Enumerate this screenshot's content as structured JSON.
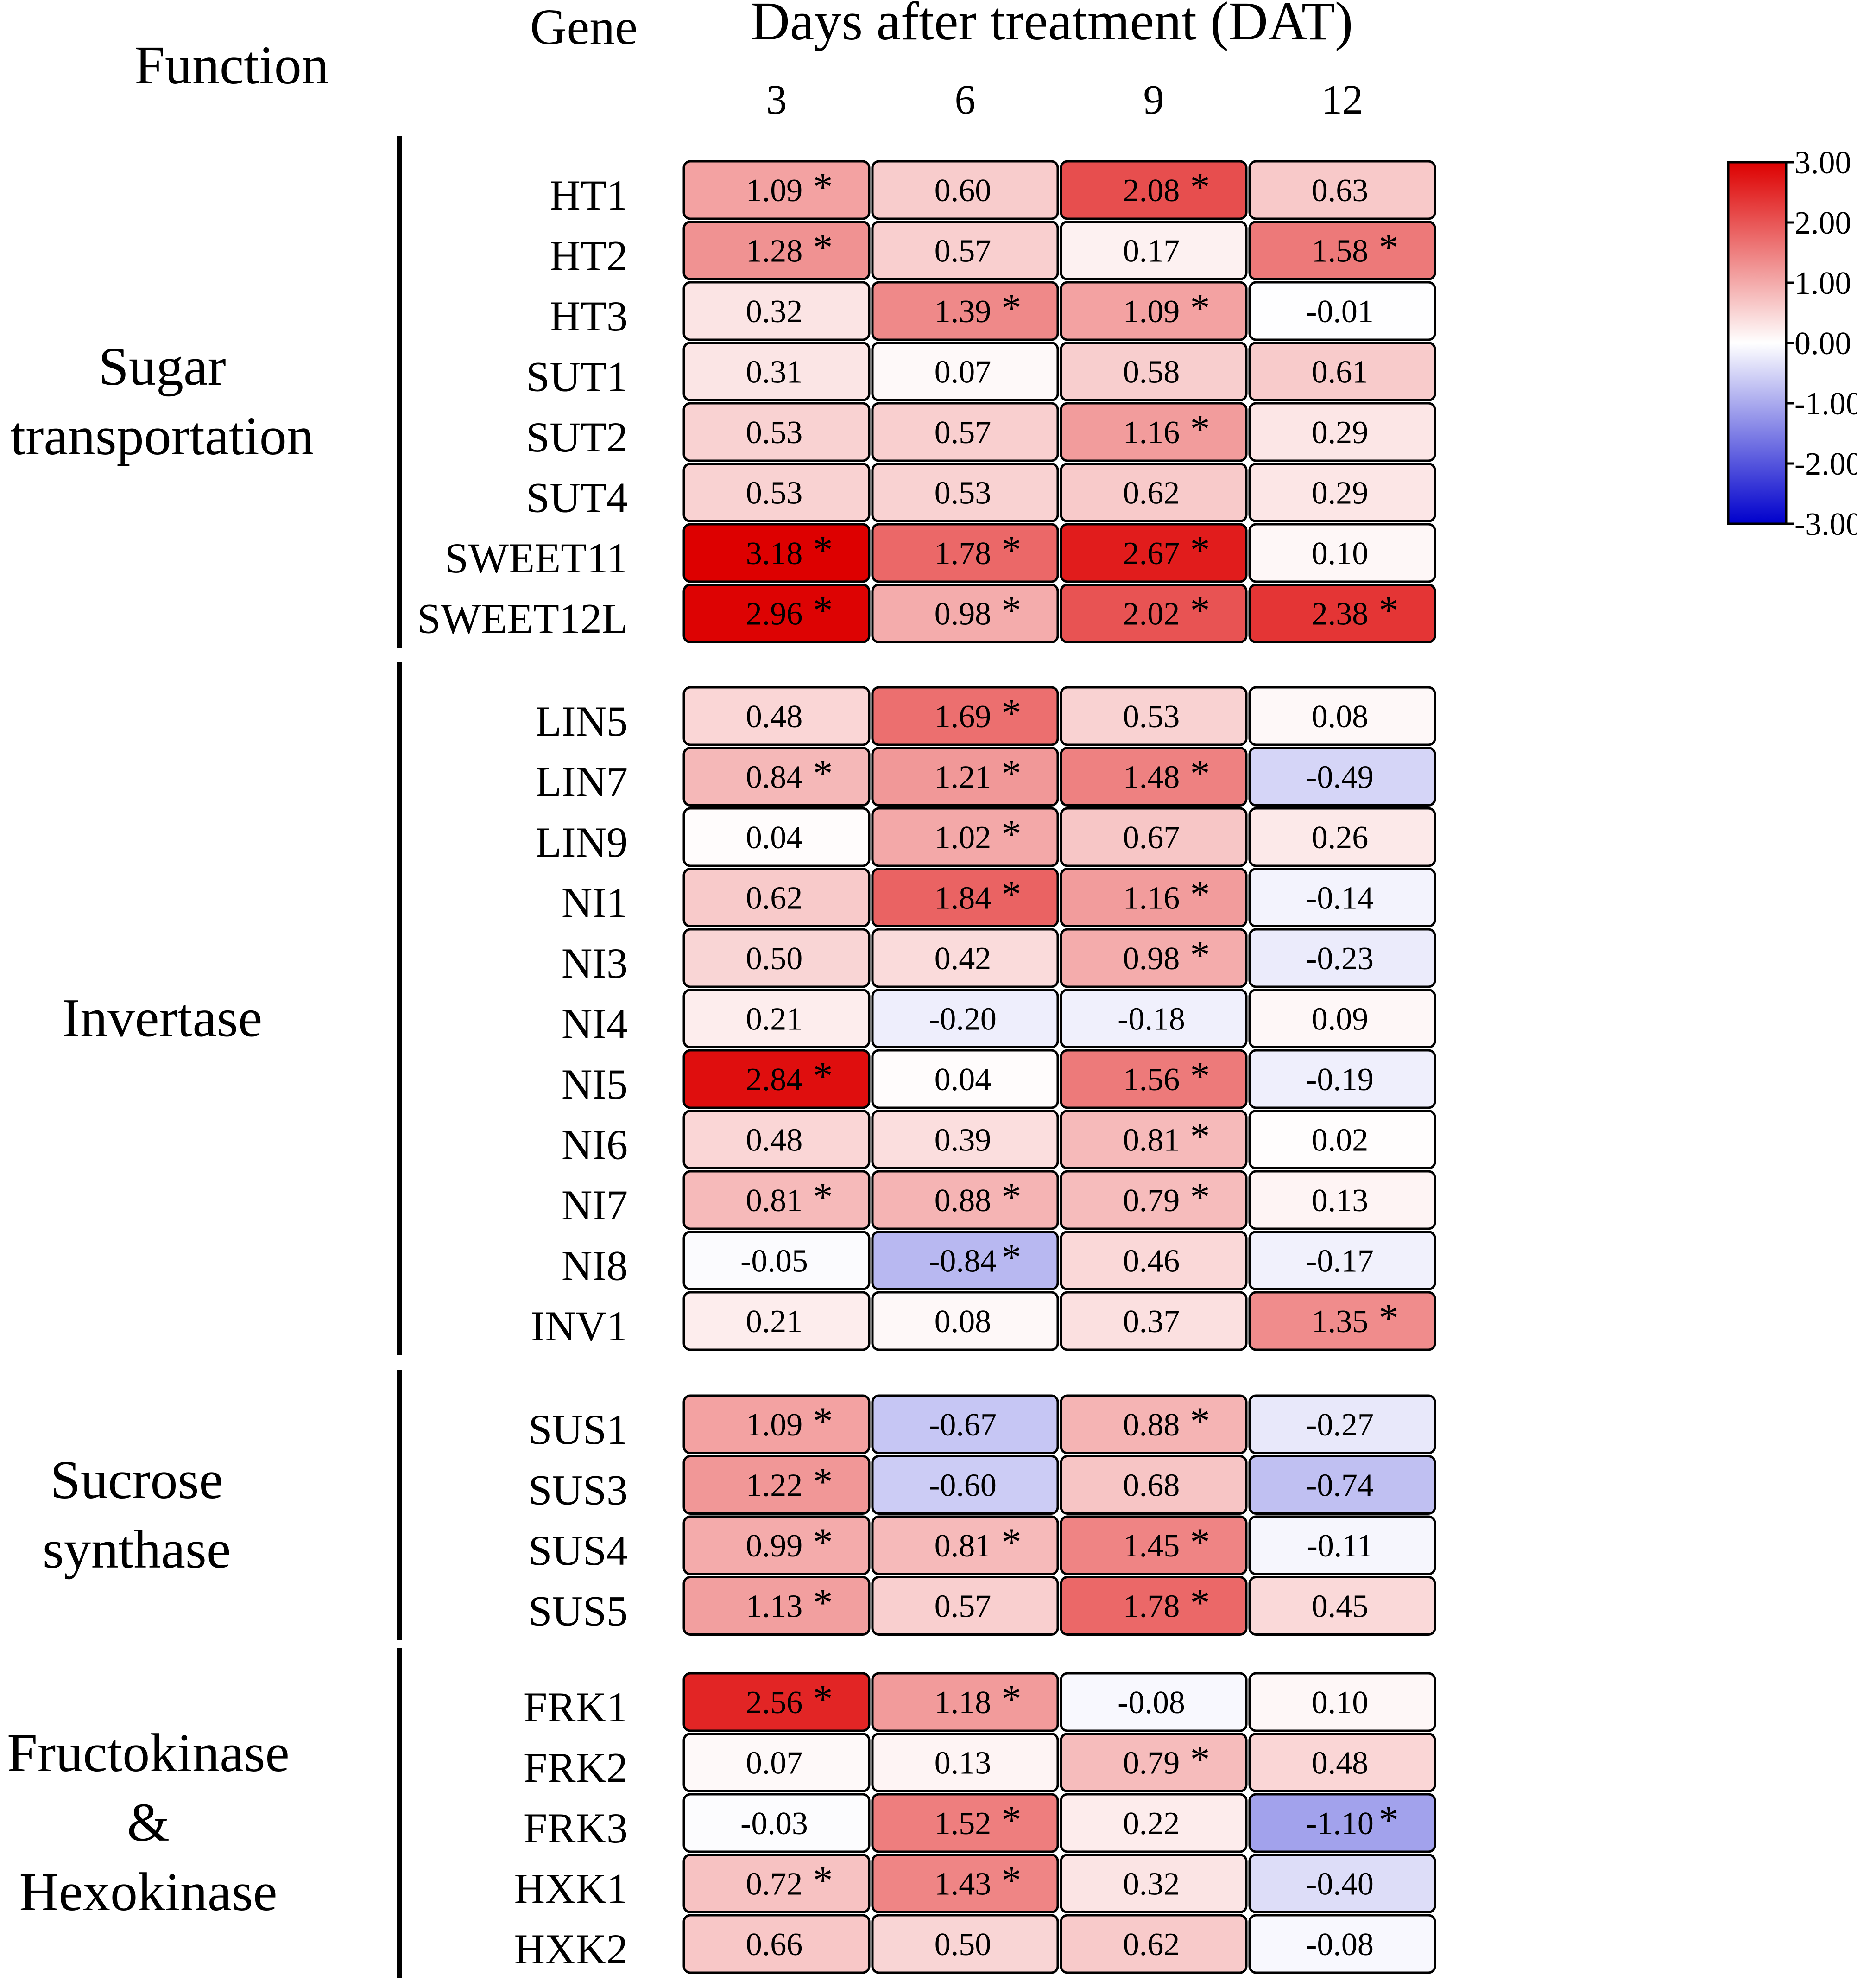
{
  "chart_data": {
    "type": "heatmap",
    "title": "Days after treatment (DAT)",
    "function_header": "Function",
    "gene_header": "Gene",
    "columns": [
      "3",
      "6",
      "9",
      "12"
    ],
    "significance_marker": "*",
    "color_scale": {
      "min": -3.0,
      "max": 3.0,
      "ticks": [
        "3.00",
        "2.00",
        "1.00",
        "0.00",
        "-1.00",
        "-2.00",
        "-3.00"
      ],
      "low_color": "#0000cc",
      "mid_color": "#ffffff",
      "high_color": "#dd0000"
    },
    "groups": [
      {
        "label_lines": [
          "Sugar",
          "transportation"
        ],
        "rows": [
          {
            "gene": "HT1",
            "values": [
              1.09,
              0.6,
              2.08,
              0.63
            ],
            "labels": [
              "1.09",
              "0.60",
              "2.08",
              "0.63"
            ],
            "sig": [
              true,
              false,
              true,
              false
            ]
          },
          {
            "gene": "HT2",
            "values": [
              1.28,
              0.57,
              0.17,
              1.58
            ],
            "labels": [
              "1.28",
              "0.57",
              "0.17",
              "1.58"
            ],
            "sig": [
              true,
              false,
              false,
              true
            ]
          },
          {
            "gene": "HT3",
            "values": [
              0.32,
              1.39,
              1.09,
              -0.01
            ],
            "labels": [
              "0.32",
              "1.39",
              "1.09",
              "-0.01"
            ],
            "sig": [
              false,
              true,
              true,
              false
            ]
          },
          {
            "gene": "SUT1",
            "values": [
              0.31,
              0.07,
              0.58,
              0.61
            ],
            "labels": [
              "0.31",
              "0.07",
              "0.58",
              "0.61"
            ],
            "sig": [
              false,
              false,
              false,
              false
            ]
          },
          {
            "gene": "SUT2",
            "values": [
              0.53,
              0.57,
              1.16,
              0.29
            ],
            "labels": [
              "0.53",
              "0.57",
              "1.16",
              "0.29"
            ],
            "sig": [
              false,
              false,
              true,
              false
            ]
          },
          {
            "gene": "SUT4",
            "values": [
              0.53,
              0.53,
              0.62,
              0.29
            ],
            "labels": [
              "0.53",
              "0.53",
              "0.62",
              "0.29"
            ],
            "sig": [
              false,
              false,
              false,
              false
            ]
          },
          {
            "gene": "SWEET11",
            "values": [
              3.18,
              1.78,
              2.67,
              0.1
            ],
            "labels": [
              "3.18",
              "1.78",
              "2.67",
              "0.10"
            ],
            "sig": [
              true,
              true,
              true,
              false
            ]
          },
          {
            "gene": "SWEET12L",
            "values": [
              2.96,
              0.98,
              2.02,
              2.38
            ],
            "labels": [
              "2.96",
              "0.98",
              "2.02",
              "2.38"
            ],
            "sig": [
              true,
              true,
              true,
              true
            ]
          }
        ]
      },
      {
        "label_lines": [
          "Invertase"
        ],
        "rows": [
          {
            "gene": "LIN5",
            "values": [
              0.48,
              1.69,
              0.53,
              0.08
            ],
            "labels": [
              "0.48",
              "1.69",
              "0.53",
              "0.08"
            ],
            "sig": [
              false,
              true,
              false,
              false
            ]
          },
          {
            "gene": "LIN7",
            "values": [
              0.84,
              1.21,
              1.48,
              -0.49
            ],
            "labels": [
              "0.84",
              "1.21",
              "1.48",
              "-0.49"
            ],
            "sig": [
              true,
              true,
              true,
              false
            ]
          },
          {
            "gene": "LIN9",
            "values": [
              0.04,
              1.02,
              0.67,
              0.26
            ],
            "labels": [
              "0.04",
              "1.02",
              "0.67",
              "0.26"
            ],
            "sig": [
              false,
              true,
              false,
              false
            ]
          },
          {
            "gene": "NI1",
            "values": [
              0.62,
              1.84,
              1.16,
              -0.14
            ],
            "labels": [
              "0.62",
              "1.84",
              "1.16",
              "-0.14"
            ],
            "sig": [
              false,
              true,
              true,
              false
            ]
          },
          {
            "gene": "NI3",
            "values": [
              0.5,
              0.42,
              0.98,
              -0.23
            ],
            "labels": [
              "0.50",
              "0.42",
              "0.98",
              "-0.23"
            ],
            "sig": [
              false,
              false,
              true,
              false
            ]
          },
          {
            "gene": "NI4",
            "values": [
              0.21,
              -0.2,
              -0.18,
              0.09
            ],
            "labels": [
              "0.21",
              "-0.20",
              "-0.18",
              "0.09"
            ],
            "sig": [
              false,
              false,
              false,
              false
            ]
          },
          {
            "gene": "NI5",
            "values": [
              2.84,
              0.04,
              1.56,
              -0.19
            ],
            "labels": [
              "2.84",
              "0.04",
              "1.56",
              "-0.19"
            ],
            "sig": [
              true,
              false,
              true,
              false
            ]
          },
          {
            "gene": "NI6",
            "values": [
              0.48,
              0.39,
              0.81,
              0.02
            ],
            "labels": [
              "0.48",
              "0.39",
              "0.81",
              "0.02"
            ],
            "sig": [
              false,
              false,
              true,
              false
            ]
          },
          {
            "gene": "NI7",
            "values": [
              0.81,
              0.88,
              0.79,
              0.13
            ],
            "labels": [
              "0.81",
              "0.88",
              "0.79",
              "0.13"
            ],
            "sig": [
              true,
              true,
              true,
              false
            ]
          },
          {
            "gene": "NI8",
            "values": [
              -0.05,
              -0.84,
              0.46,
              -0.17
            ],
            "labels": [
              "-0.05",
              "-0.84",
              "0.46",
              "-0.17"
            ],
            "sig": [
              false,
              true,
              false,
              false
            ]
          },
          {
            "gene": "INV1",
            "values": [
              0.21,
              0.08,
              0.37,
              1.35
            ],
            "labels": [
              "0.21",
              "0.08",
              "0.37",
              "1.35"
            ],
            "sig": [
              false,
              false,
              false,
              true
            ]
          }
        ]
      },
      {
        "label_lines": [
          "Sucrose",
          "synthase"
        ],
        "rows": [
          {
            "gene": "SUS1",
            "values": [
              1.09,
              -0.67,
              0.88,
              -0.27
            ],
            "labels": [
              "1.09",
              "-0.67",
              "0.88",
              "-0.27"
            ],
            "sig": [
              true,
              false,
              true,
              false
            ]
          },
          {
            "gene": "SUS3",
            "values": [
              1.22,
              -0.6,
              0.68,
              -0.74
            ],
            "labels": [
              "1.22",
              "-0.60",
              "0.68",
              "-0.74"
            ],
            "sig": [
              true,
              false,
              false,
              false
            ]
          },
          {
            "gene": "SUS4",
            "values": [
              0.99,
              0.81,
              1.45,
              -0.11
            ],
            "labels": [
              "0.99",
              "0.81",
              "1.45",
              "-0.11"
            ],
            "sig": [
              true,
              true,
              true,
              false
            ]
          },
          {
            "gene": "SUS5",
            "values": [
              1.13,
              0.57,
              1.78,
              0.45
            ],
            "labels": [
              "1.13",
              "0.57",
              "1.78",
              "0.45"
            ],
            "sig": [
              true,
              false,
              true,
              false
            ]
          }
        ]
      },
      {
        "label_lines": [
          "Fructokinase",
          "&",
          "Hexokinase"
        ],
        "rows": [
          {
            "gene": "FRK1",
            "values": [
              2.56,
              1.18,
              -0.08,
              0.1
            ],
            "labels": [
              "2.56",
              "1.18",
              "-0.08",
              "0.10"
            ],
            "sig": [
              true,
              true,
              false,
              false
            ]
          },
          {
            "gene": "FRK2",
            "values": [
              0.07,
              0.13,
              0.79,
              0.48
            ],
            "labels": [
              "0.07",
              "0.13",
              "0.79",
              "0.48"
            ],
            "sig": [
              false,
              false,
              true,
              false
            ]
          },
          {
            "gene": "FRK3",
            "values": [
              -0.03,
              1.52,
              0.22,
              -1.1
            ],
            "labels": [
              "-0.03",
              "1.52",
              "0.22",
              "-1.10"
            ],
            "sig": [
              false,
              true,
              false,
              true
            ]
          },
          {
            "gene": "HXK1",
            "values": [
              0.72,
              1.43,
              0.32,
              -0.4
            ],
            "labels": [
              "0.72",
              "1.43",
              "0.32",
              "-0.40"
            ],
            "sig": [
              true,
              true,
              false,
              false
            ]
          },
          {
            "gene": "HXK2",
            "values": [
              0.66,
              0.5,
              0.62,
              -0.08
            ],
            "labels": [
              "0.66",
              "0.50",
              "0.62",
              "-0.08"
            ],
            "sig": [
              false,
              false,
              false,
              false
            ]
          }
        ]
      }
    ]
  }
}
